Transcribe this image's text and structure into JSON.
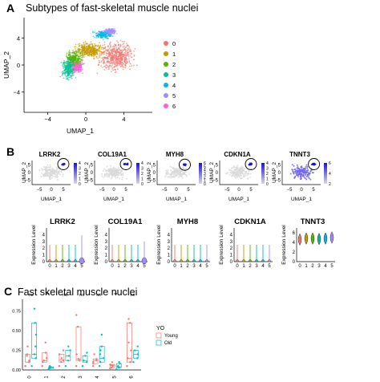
{
  "panels": {
    "a": {
      "label": "A",
      "title": "Subtypes of fast-skeletal muscle nuclei"
    },
    "b": {
      "label": "B"
    },
    "c": {
      "label": "C",
      "title": "Fast skeletal muscle nuclei"
    }
  },
  "colors": {
    "clusters": [
      "#F0756E",
      "#C49A00",
      "#53B400",
      "#00C094",
      "#00B6EB",
      "#A58AFF",
      "#FB61D7"
    ],
    "young": "#F8766D",
    "old": "#00BFC4",
    "feature_high": "#1E10E0",
    "feature_low": "#D9D9D9"
  },
  "chart_data": [
    {
      "id": "umap_clusters",
      "type": "scatter",
      "xlabel": "UMAP_1",
      "ylabel": "UMAP_2",
      "xticks": [
        "−4",
        "0",
        "4"
      ],
      "yticks": [
        "4",
        "0",
        "−4"
      ],
      "legend_position": "right",
      "legend": [
        "0",
        "1",
        "2",
        "3",
        "4",
        "5",
        "6"
      ],
      "clusters": [
        {
          "name": "0",
          "center": [
            3.2,
            1.2
          ]
        },
        {
          "name": "1",
          "center": [
            0.3,
            2.2
          ]
        },
        {
          "name": "2",
          "center": [
            -1.2,
            0.8
          ]
        },
        {
          "name": "3",
          "center": [
            -1.8,
            -0.6
          ]
        },
        {
          "name": "4",
          "center": [
            1.8,
            4.5
          ]
        },
        {
          "name": "5",
          "center": [
            2.6,
            5.0
          ]
        },
        {
          "name": "6",
          "center": [
            -0.8,
            -0.2
          ]
        }
      ]
    },
    {
      "id": "feature_plots",
      "type": "scatter",
      "xlabel": "UMAP_1",
      "ylabel": "UMAP_2",
      "xticks": [
        "−5",
        "0",
        "5"
      ],
      "yticks": [
        "5",
        "0",
        "−5"
      ],
      "genes": [
        "LRRK2",
        "COL19A1",
        "MYH8",
        "CDKN1A",
        "TNNT3"
      ],
      "colorbar_ticks": [
        [
          "0",
          "1",
          "2",
          "3",
          "4"
        ],
        [
          "0",
          "1",
          "2",
          "3",
          "4"
        ],
        [
          "0",
          "1",
          "2",
          "3",
          "4",
          "5",
          "6"
        ],
        [
          "0",
          "1",
          "2",
          "3",
          "4"
        ],
        [
          "2",
          "4",
          "6"
        ]
      ]
    },
    {
      "id": "violin_plots",
      "type": "area",
      "ylabel": "Expression Level",
      "categories": [
        "0",
        "1",
        "2",
        "3",
        "4",
        "5"
      ],
      "yticks": [
        "0",
        "1",
        "2",
        "3",
        "4"
      ],
      "yticks_last": [
        "0",
        "2",
        "4",
        "6"
      ],
      "genes": [
        "LRRK2",
        "COL19A1",
        "MYH8",
        "CDKN1A",
        "TNNT3"
      ],
      "ylim": [
        0,
        5
      ],
      "ylim_last": [
        0,
        7
      ],
      "series": [
        {
          "name": "LRRK2",
          "values": [
            0.3,
            0.2,
            0.2,
            0.3,
            0.2,
            1.3
          ]
        },
        {
          "name": "COL19A1",
          "values": [
            0.1,
            0.1,
            0.1,
            0.1,
            0.1,
            1.0
          ]
        },
        {
          "name": "MYH8",
          "values": [
            0.2,
            0.2,
            0.2,
            0.2,
            0.2,
            0.4
          ]
        },
        {
          "name": "CDKN1A",
          "values": [
            0.1,
            0.1,
            0.1,
            0.1,
            0.1,
            0.2
          ]
        },
        {
          "name": "TNNT3",
          "values": [
            4.6,
            4.8,
            4.8,
            4.7,
            4.8,
            5.0
          ]
        }
      ]
    },
    {
      "id": "boxplot_young_old",
      "type": "bar",
      "legend_title": "YO",
      "legend": [
        "Young",
        "Old"
      ],
      "legend_position": "right",
      "categories": [
        "0",
        "1",
        "2",
        "3",
        "4",
        "5",
        "6"
      ],
      "significance": [
        "ns",
        "**",
        "ns",
        "ns",
        "ns",
        "**",
        "ns"
      ],
      "yticks": [
        "0.00",
        "0.25",
        "0.50",
        "0.75"
      ],
      "ylim": [
        0,
        0.9
      ],
      "series": [
        {
          "name": "Young",
          "values": [
            0.1,
            0.12,
            0.13,
            0.14,
            0.12,
            0.06,
            0.15
          ]
        },
        {
          "name": "Old",
          "values": [
            0.2,
            0.03,
            0.18,
            0.12,
            0.15,
            0.04,
            0.2
          ]
        }
      ],
      "points": {
        "Young": [
          [
            0.05,
            0.1,
            0.12,
            0.18,
            0.2,
            0.3
          ],
          [
            0.15,
            0.22,
            0.35,
            0.1,
            0.05,
            0.12
          ],
          [
            0.05,
            0.12,
            0.15,
            0.2,
            0.25,
            0.1
          ],
          [
            0.05,
            0.12,
            0.14,
            0.2,
            0.55,
            0.7
          ],
          [
            0.05,
            0.1,
            0.14,
            0.12,
            0.2,
            0.08
          ],
          [
            0.02,
            0.05,
            0.07,
            0.03,
            0.1,
            0.06
          ],
          [
            0.05,
            0.1,
            0.15,
            0.25,
            0.35,
            0.6,
            0.65
          ]
        ],
        "Old": [
          [
            0.05,
            0.15,
            0.2,
            0.3,
            0.45,
            0.6,
            0.78
          ],
          [
            0.01,
            0.02,
            0.03,
            0.05,
            0.04
          ],
          [
            0.05,
            0.12,
            0.18,
            0.25,
            0.3
          ],
          [
            0.05,
            0.1,
            0.12,
            0.18,
            0.22
          ],
          [
            0.05,
            0.1,
            0.15,
            0.2,
            0.25,
            0.3,
            0.45
          ],
          [
            0.01,
            0.03,
            0.05,
            0.08,
            0.1
          ],
          [
            0.1,
            0.15,
            0.2,
            0.25,
            0.3
          ]
        ]
      }
    }
  ]
}
